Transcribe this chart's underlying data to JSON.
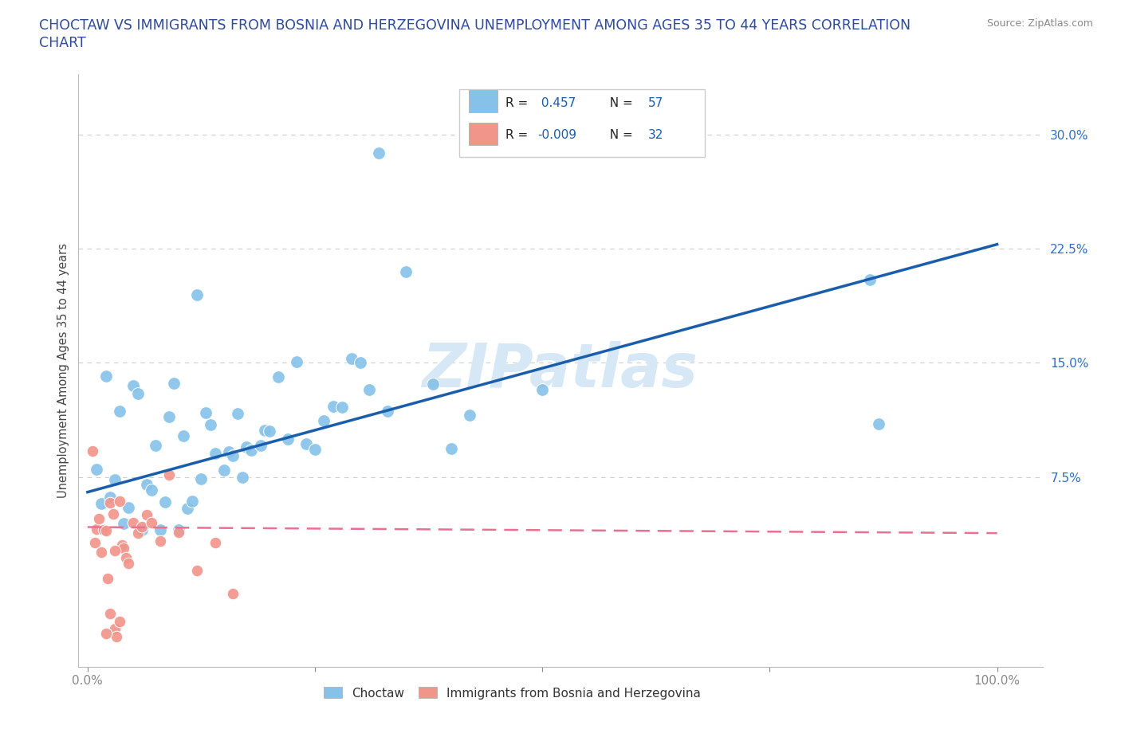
{
  "title_line1": "CHOCTAW VS IMMIGRANTS FROM BOSNIA AND HERZEGOVINA UNEMPLOYMENT AMONG AGES 35 TO 44 YEARS CORRELATION",
  "title_line2": "CHART",
  "source_text": "Source: ZipAtlas.com",
  "ylabel": "Unemployment Among Ages 35 to 44 years",
  "ytick_vals": [
    0.0,
    0.075,
    0.15,
    0.225,
    0.3
  ],
  "ytick_labels": [
    "",
    "7.5%",
    "15.0%",
    "22.5%",
    "30.0%"
  ],
  "xtick_vals": [
    0.0,
    0.25,
    0.5,
    0.75,
    1.0
  ],
  "xtick_labels": [
    "0.0%",
    "",
    "",
    "",
    "100.0%"
  ],
  "xlim": [
    -0.01,
    1.05
  ],
  "ylim": [
    -0.05,
    0.34
  ],
  "choctaw_R": 0.457,
  "choctaw_N": 57,
  "bosnia_R": -0.009,
  "bosnia_N": 32,
  "choctaw_color": "#85C1E9",
  "bosnia_color": "#F1948A",
  "choctaw_line_color": "#1A5DAB",
  "bosnia_line_color": "#E87090",
  "legend_text_color": "#1A5DAB",
  "watermark_color": "#D6E8F5",
  "background_color": "#FFFFFF",
  "grid_color": "#CCCCCC",
  "title_color": "#2E4A99",
  "tick_label_color": "#2E6DC4"
}
